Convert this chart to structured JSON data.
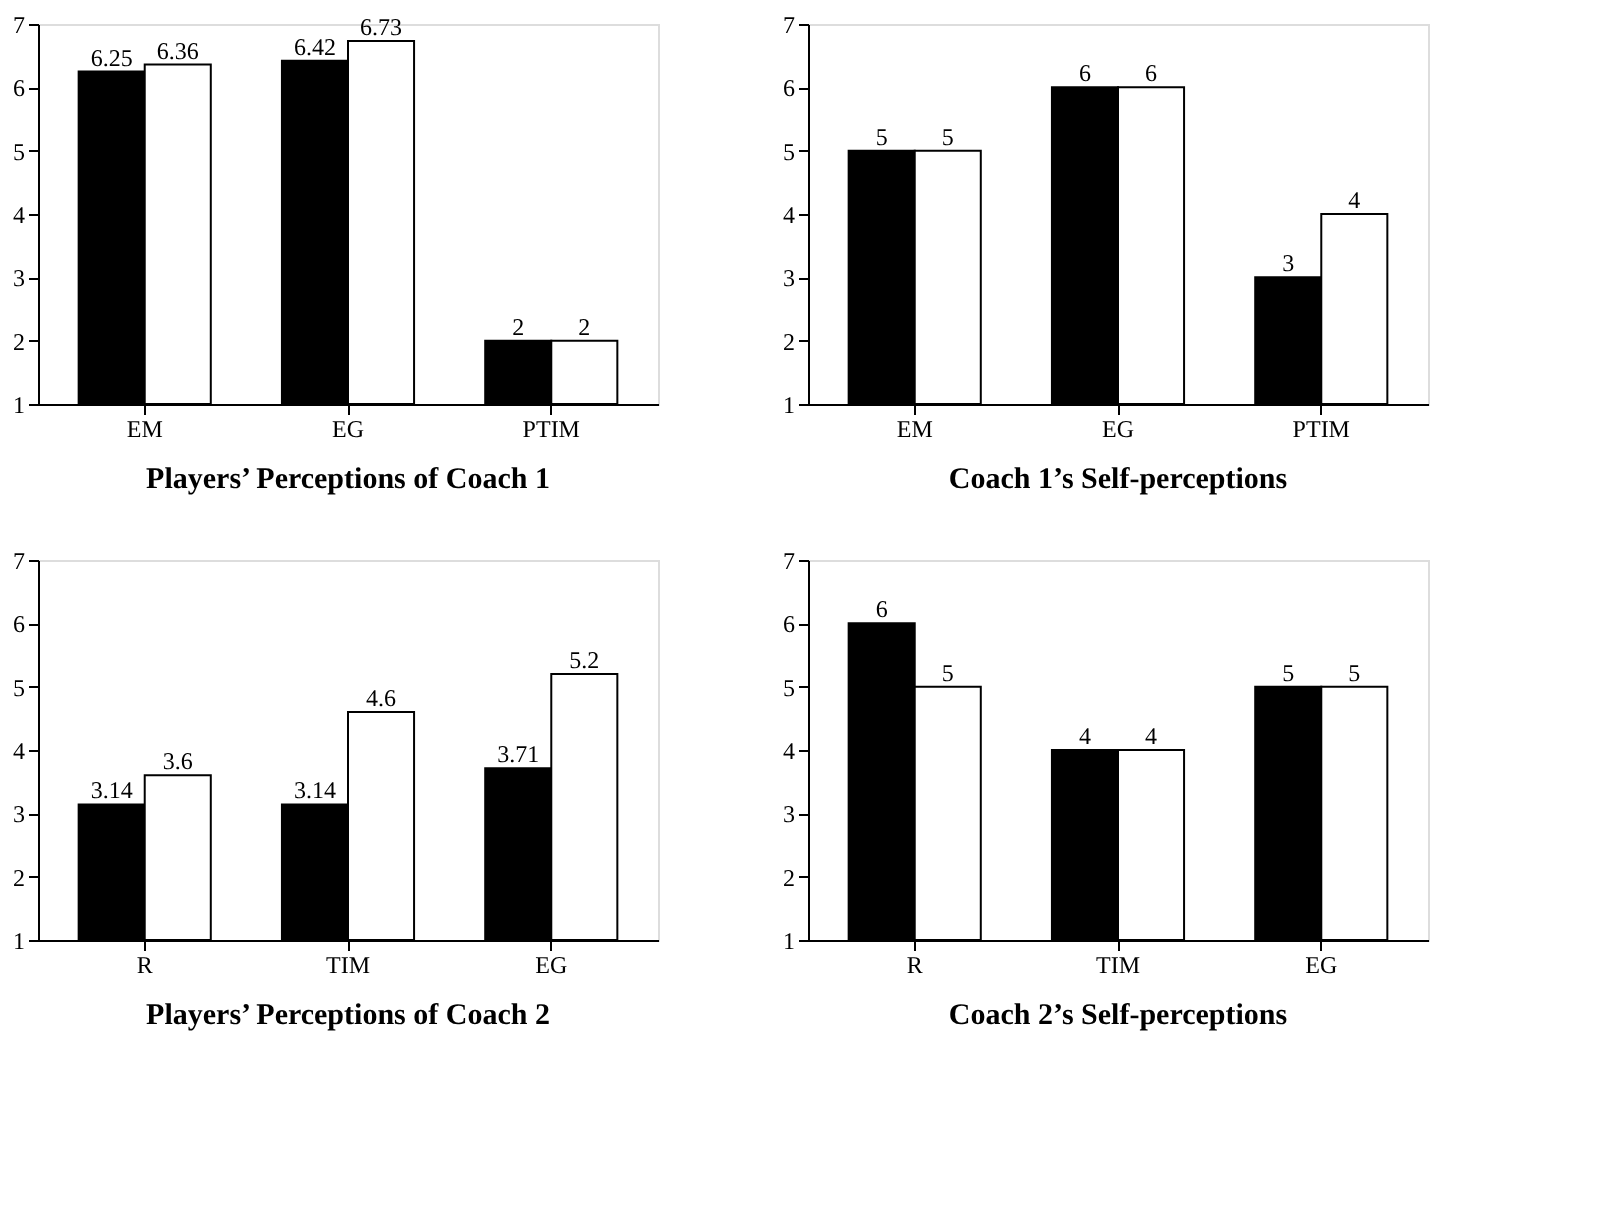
{
  "chart_data": [
    {
      "type": "bar",
      "title": "Players’ Perceptions of Coach 1",
      "categories": [
        "EM",
        "EG",
        "PTIM"
      ],
      "series": [
        {
          "color": "#000000",
          "values": [
            6.25,
            6.42,
            2
          ]
        },
        {
          "color": "#ffffff",
          "values": [
            6.36,
            6.73,
            2
          ]
        }
      ],
      "ylim": [
        1,
        7
      ],
      "yticks": [
        1,
        2,
        3,
        4,
        5,
        6,
        7
      ],
      "data_labels": true,
      "grid": false
    },
    {
      "type": "bar",
      "title": "Coach 1’s Self-perceptions",
      "categories": [
        "EM",
        "EG",
        "PTIM"
      ],
      "series": [
        {
          "color": "#000000",
          "values": [
            5,
            6,
            3
          ]
        },
        {
          "color": "#ffffff",
          "values": [
            5,
            6,
            4
          ]
        }
      ],
      "ylim": [
        1,
        7
      ],
      "yticks": [
        1,
        2,
        3,
        4,
        5,
        6,
        7
      ],
      "data_labels": true,
      "grid": false
    },
    {
      "type": "bar",
      "title": "Players’ Perceptions of Coach 2",
      "categories": [
        "R",
        "TIM",
        "EG"
      ],
      "series": [
        {
          "color": "#000000",
          "values": [
            3.14,
            3.14,
            3.71
          ]
        },
        {
          "color": "#ffffff",
          "values": [
            3.6,
            4.6,
            5.2
          ]
        }
      ],
      "ylim": [
        1,
        7
      ],
      "yticks": [
        1,
        2,
        3,
        4,
        5,
        6,
        7
      ],
      "data_labels": true,
      "grid": false
    },
    {
      "type": "bar",
      "title": "Coach 2’s Self-perceptions",
      "categories": [
        "R",
        "TIM",
        "EG"
      ],
      "series": [
        {
          "color": "#000000",
          "values": [
            6,
            4,
            5
          ]
        },
        {
          "color": "#ffffff",
          "values": [
            5,
            4,
            5
          ]
        }
      ],
      "ylim": [
        1,
        7
      ],
      "yticks": [
        1,
        2,
        3,
        4,
        5,
        6,
        7
      ],
      "data_labels": true,
      "grid": false
    }
  ]
}
